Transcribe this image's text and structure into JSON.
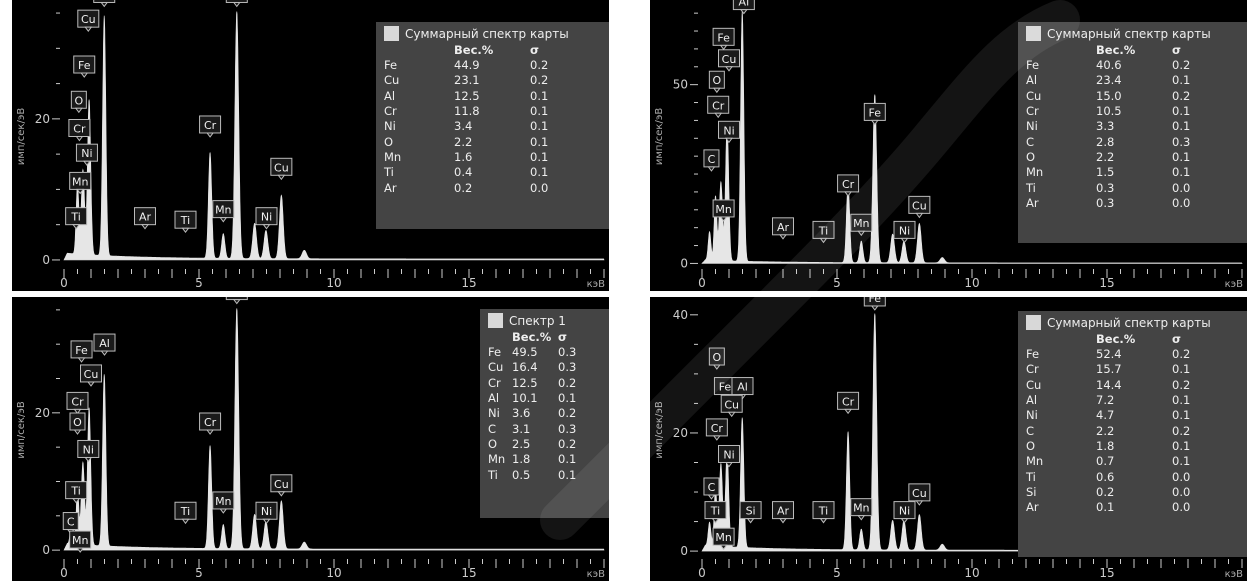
{
  "labels": {
    "ylabel": "имп/сек/эВ",
    "xunit": "кэВ",
    "col_wt": "Вес.%",
    "col_sigma": "σ"
  },
  "colors": {
    "background": "#000000",
    "spectrum": "#e6e6e6",
    "legend_bg": "#444444",
    "swatch": "#d8d8d8",
    "label_box": "#1a1a1a",
    "watermark": "#ffffff"
  },
  "chart_data": [
    {
      "type": "line",
      "xlabel": "кэВ",
      "ylabel": "имп/сек/эВ",
      "xlim": [
        0,
        20
      ],
      "xticks": [
        0,
        5,
        10,
        15
      ],
      "ylim": [
        -1,
        36
      ],
      "yticks": [
        0,
        20
      ],
      "legend_title": "Суммарный спектр карты",
      "table": [
        {
          "el": "Fe",
          "wt": "44.9",
          "sigma": "0.2"
        },
        {
          "el": "Cu",
          "wt": "23.1",
          "sigma": "0.2"
        },
        {
          "el": "Al",
          "wt": "12.5",
          "sigma": "0.1"
        },
        {
          "el": "Cr",
          "wt": "11.8",
          "sigma": "0.1"
        },
        {
          "el": "Ni",
          "wt": "3.4",
          "sigma": "0.1"
        },
        {
          "el": "O",
          "wt": "2.2",
          "sigma": "0.1"
        },
        {
          "el": "Mn",
          "wt": "1.6",
          "sigma": "0.1"
        },
        {
          "el": "Ti",
          "wt": "0.4",
          "sigma": "0.1"
        },
        {
          "el": "Ar",
          "wt": "0.2",
          "sigma": "0.0"
        }
      ],
      "peaks": [
        {
          "x": 0.5,
          "y": 10,
          "w": 0.05
        },
        {
          "x": 0.7,
          "y": 12,
          "w": 0.06
        },
        {
          "x": 0.93,
          "y": 22,
          "w": 0.06
        },
        {
          "x": 1.49,
          "y": 34,
          "w": 0.06
        },
        {
          "x": 5.41,
          "y": 15,
          "w": 0.06
        },
        {
          "x": 5.9,
          "y": 3.5,
          "w": 0.06
        },
        {
          "x": 6.4,
          "y": 35,
          "w": 0.07
        },
        {
          "x": 7.06,
          "y": 5,
          "w": 0.07
        },
        {
          "x": 7.48,
          "y": 4,
          "w": 0.07
        },
        {
          "x": 8.05,
          "y": 9,
          "w": 0.07
        },
        {
          "x": 8.9,
          "y": 1.2,
          "w": 0.08
        }
      ],
      "peak_labels": [
        {
          "text": "Al",
          "x": 1.49,
          "y": 36.5
        },
        {
          "text": "Fe",
          "x": 6.4,
          "y": 36.5
        },
        {
          "text": "Cu",
          "x": 0.9,
          "y": 33
        },
        {
          "text": "Fe",
          "x": 0.75,
          "y": 26.5
        },
        {
          "text": "O",
          "x": 0.55,
          "y": 21.5
        },
        {
          "text": "Cr",
          "x": 0.57,
          "y": 17.5
        },
        {
          "text": "Ni",
          "x": 0.85,
          "y": 14
        },
        {
          "text": "Mn",
          "x": 0.6,
          "y": 10
        },
        {
          "text": "Ti",
          "x": 0.45,
          "y": 5
        },
        {
          "text": "Ar",
          "x": 3.0,
          "y": 5
        },
        {
          "text": "Ti",
          "x": 4.5,
          "y": 4.5
        },
        {
          "text": "Cr",
          "x": 5.41,
          "y": 18
        },
        {
          "text": "Mn",
          "x": 5.9,
          "y": 6
        },
        {
          "text": "Ni",
          "x": 7.5,
          "y": 5
        },
        {
          "text": "Cu",
          "x": 8.05,
          "y": 12
        }
      ]
    },
    {
      "type": "line",
      "xlabel": "кэВ",
      "ylabel": "имп/сек/эВ",
      "xlim": [
        0,
        20
      ],
      "xticks": [
        0,
        5,
        10,
        15
      ],
      "ylim": [
        -1,
        72
      ],
      "yticks": [
        0,
        50
      ],
      "legend_title": "Суммарный спектр карты",
      "table": [
        {
          "el": "Fe",
          "wt": "40.6",
          "sigma": "0.2"
        },
        {
          "el": "Al",
          "wt": "23.4",
          "sigma": "0.1"
        },
        {
          "el": "Cu",
          "wt": "15.0",
          "sigma": "0.2"
        },
        {
          "el": "Cr",
          "wt": "10.5",
          "sigma": "0.1"
        },
        {
          "el": "Ni",
          "wt": "3.3",
          "sigma": "0.1"
        },
        {
          "el": "C",
          "wt": "2.8",
          "sigma": "0.3"
        },
        {
          "el": "O",
          "wt": "2.2",
          "sigma": "0.1"
        },
        {
          "el": "Mn",
          "wt": "1.5",
          "sigma": "0.1"
        },
        {
          "el": "Ti",
          "wt": "0.3",
          "sigma": "0.0"
        },
        {
          "el": "Ar",
          "wt": "0.3",
          "sigma": "0.0"
        }
      ],
      "peaks": [
        {
          "x": 0.28,
          "y": 8,
          "w": 0.05
        },
        {
          "x": 0.5,
          "y": 18,
          "w": 0.05
        },
        {
          "x": 0.7,
          "y": 22,
          "w": 0.06
        },
        {
          "x": 0.93,
          "y": 38,
          "w": 0.06
        },
        {
          "x": 1.49,
          "y": 70,
          "w": 0.06
        },
        {
          "x": 5.41,
          "y": 22,
          "w": 0.06
        },
        {
          "x": 5.9,
          "y": 6,
          "w": 0.06
        },
        {
          "x": 6.4,
          "y": 47,
          "w": 0.07
        },
        {
          "x": 7.06,
          "y": 8,
          "w": 0.07
        },
        {
          "x": 7.48,
          "y": 6,
          "w": 0.07
        },
        {
          "x": 8.05,
          "y": 11,
          "w": 0.07
        },
        {
          "x": 8.9,
          "y": 1.5,
          "w": 0.08
        }
      ],
      "peak_labels": [
        {
          "text": "Al",
          "x": 1.55,
          "y": 71
        },
        {
          "text": "Fe",
          "x": 0.8,
          "y": 61
        },
        {
          "text": "Cu",
          "x": 1.0,
          "y": 55
        },
        {
          "text": "O",
          "x": 0.55,
          "y": 49
        },
        {
          "text": "Cr",
          "x": 0.6,
          "y": 42
        },
        {
          "text": "Ni",
          "x": 1.0,
          "y": 35
        },
        {
          "text": "C",
          "x": 0.35,
          "y": 27
        },
        {
          "text": "Mn",
          "x": 0.8,
          "y": 13
        },
        {
          "text": "Ar",
          "x": 3.0,
          "y": 8
        },
        {
          "text": "Ti",
          "x": 4.5,
          "y": 7
        },
        {
          "text": "Cr",
          "x": 5.41,
          "y": 20
        },
        {
          "text": "Fe",
          "x": 6.4,
          "y": 40
        },
        {
          "text": "Mn",
          "x": 5.9,
          "y": 9
        },
        {
          "text": "Ni",
          "x": 7.5,
          "y": 7
        },
        {
          "text": "Cu",
          "x": 8.05,
          "y": 14
        }
      ]
    },
    {
      "type": "line",
      "xlabel": "кэВ",
      "ylabel": "имп/сек/эВ",
      "xlim": [
        0,
        20
      ],
      "xticks": [
        0,
        5,
        10,
        15
      ],
      "ylim": [
        -1,
        36
      ],
      "yticks": [
        0,
        20
      ],
      "legend_title": "Спектр 1",
      "table": [
        {
          "el": "Fe",
          "wt": "49.5",
          "sigma": "0.3"
        },
        {
          "el": "Cu",
          "wt": "16.4",
          "sigma": "0.3"
        },
        {
          "el": "Cr",
          "wt": "12.5",
          "sigma": "0.2"
        },
        {
          "el": "Al",
          "wt": "10.1",
          "sigma": "0.1"
        },
        {
          "el": "Ni",
          "wt": "3.6",
          "sigma": "0.2"
        },
        {
          "el": "C",
          "wt": "3.1",
          "sigma": "0.3"
        },
        {
          "el": "O",
          "wt": "2.5",
          "sigma": "0.2"
        },
        {
          "el": "Mn",
          "wt": "1.8",
          "sigma": "0.1"
        },
        {
          "el": "Ti",
          "wt": "0.5",
          "sigma": "0.1"
        }
      ],
      "peaks": [
        {
          "x": 0.28,
          "y": 3,
          "w": 0.05
        },
        {
          "x": 0.5,
          "y": 8,
          "w": 0.05
        },
        {
          "x": 0.7,
          "y": 12,
          "w": 0.06
        },
        {
          "x": 0.93,
          "y": 20,
          "w": 0.06
        },
        {
          "x": 1.49,
          "y": 25,
          "w": 0.06
        },
        {
          "x": 5.41,
          "y": 15,
          "w": 0.06
        },
        {
          "x": 5.9,
          "y": 3.5,
          "w": 0.06
        },
        {
          "x": 6.4,
          "y": 35,
          "w": 0.07
        },
        {
          "x": 7.06,
          "y": 5,
          "w": 0.07
        },
        {
          "x": 7.48,
          "y": 4,
          "w": 0.07
        },
        {
          "x": 8.05,
          "y": 7,
          "w": 0.07
        },
        {
          "x": 8.9,
          "y": 1,
          "w": 0.08
        }
      ],
      "peak_labels": [
        {
          "text": "Fe",
          "x": 6.4,
          "y": 36.5
        },
        {
          "text": "Fe",
          "x": 0.65,
          "y": 28
        },
        {
          "text": "Al",
          "x": 1.5,
          "y": 29
        },
        {
          "text": "Cu",
          "x": 1.0,
          "y": 24.5
        },
        {
          "text": "Cr",
          "x": 0.5,
          "y": 20.5
        },
        {
          "text": "O",
          "x": 0.5,
          "y": 17.5
        },
        {
          "text": "Ni",
          "x": 0.9,
          "y": 13.5
        },
        {
          "text": "Ti",
          "x": 0.45,
          "y": 7.5
        },
        {
          "text": "C",
          "x": 0.25,
          "y": 3
        },
        {
          "text": "Mn",
          "x": 0.6,
          "y": 0.3
        },
        {
          "text": "Ti",
          "x": 4.5,
          "y": 4.5
        },
        {
          "text": "Cr",
          "x": 5.41,
          "y": 17.5
        },
        {
          "text": "Mn",
          "x": 5.9,
          "y": 6
        },
        {
          "text": "Ni",
          "x": 7.5,
          "y": 4.5
        },
        {
          "text": "Cu",
          "x": 8.05,
          "y": 8.5
        }
      ]
    },
    {
      "type": "line",
      "xlabel": "кэВ",
      "ylabel": "имп/сек/эВ",
      "xlim": [
        0,
        20
      ],
      "xticks": [
        0,
        5,
        10,
        15
      ],
      "ylim": [
        -1,
        42
      ],
      "yticks": [
        0,
        20,
        40
      ],
      "legend_title": "Суммарный спектр карты",
      "table": [
        {
          "el": "Fe",
          "wt": "52.4",
          "sigma": "0.2"
        },
        {
          "el": "Cr",
          "wt": "15.7",
          "sigma": "0.1"
        },
        {
          "el": "Cu",
          "wt": "14.4",
          "sigma": "0.2"
        },
        {
          "el": "Al",
          "wt": "7.2",
          "sigma": "0.1"
        },
        {
          "el": "Ni",
          "wt": "4.7",
          "sigma": "0.1"
        },
        {
          "el": "C",
          "wt": "2.2",
          "sigma": "0.2"
        },
        {
          "el": "O",
          "wt": "1.8",
          "sigma": "0.1"
        },
        {
          "el": "Mn",
          "wt": "0.7",
          "sigma": "0.1"
        },
        {
          "el": "Ti",
          "wt": "0.6",
          "sigma": "0.0"
        },
        {
          "el": "Si",
          "wt": "0.2",
          "sigma": "0.0"
        },
        {
          "el": "Ar",
          "wt": "0.1",
          "sigma": "0.0"
        }
      ],
      "peaks": [
        {
          "x": 0.28,
          "y": 4,
          "w": 0.05
        },
        {
          "x": 0.5,
          "y": 10,
          "w": 0.05
        },
        {
          "x": 0.7,
          "y": 14,
          "w": 0.06
        },
        {
          "x": 0.93,
          "y": 16,
          "w": 0.06
        },
        {
          "x": 1.49,
          "y": 22,
          "w": 0.06
        },
        {
          "x": 5.41,
          "y": 20,
          "w": 0.06
        },
        {
          "x": 5.9,
          "y": 3.5,
          "w": 0.06
        },
        {
          "x": 6.4,
          "y": 40,
          "w": 0.07
        },
        {
          "x": 7.06,
          "y": 5,
          "w": 0.07
        },
        {
          "x": 7.48,
          "y": 5,
          "w": 0.07
        },
        {
          "x": 8.05,
          "y": 6,
          "w": 0.07
        },
        {
          "x": 8.9,
          "y": 1,
          "w": 0.08
        }
      ],
      "peak_labels": [
        {
          "text": "Fe",
          "x": 6.4,
          "y": 41.5
        },
        {
          "text": "O",
          "x": 0.55,
          "y": 31.5
        },
        {
          "text": "Fe",
          "x": 0.85,
          "y": 26.5
        },
        {
          "text": "Al",
          "x": 1.5,
          "y": 26.5
        },
        {
          "text": "Cu",
          "x": 1.1,
          "y": 23.5
        },
        {
          "text": "Cr",
          "x": 0.55,
          "y": 19.5
        },
        {
          "text": "Ni",
          "x": 1.0,
          "y": 15
        },
        {
          "text": "C",
          "x": 0.35,
          "y": 9.5
        },
        {
          "text": "Ti",
          "x": 0.5,
          "y": 5.5
        },
        {
          "text": "Mn",
          "x": 0.8,
          "y": 1
        },
        {
          "text": "Si",
          "x": 1.8,
          "y": 5.5
        },
        {
          "text": "Ar",
          "x": 3.0,
          "y": 5.5
        },
        {
          "text": "Ti",
          "x": 4.5,
          "y": 5.5
        },
        {
          "text": "Cr",
          "x": 5.41,
          "y": 24
        },
        {
          "text": "Mn",
          "x": 5.9,
          "y": 6
        },
        {
          "text": "Ni",
          "x": 7.5,
          "y": 5.5
        },
        {
          "text": "Cu",
          "x": 8.05,
          "y": 8.5
        }
      ]
    }
  ]
}
